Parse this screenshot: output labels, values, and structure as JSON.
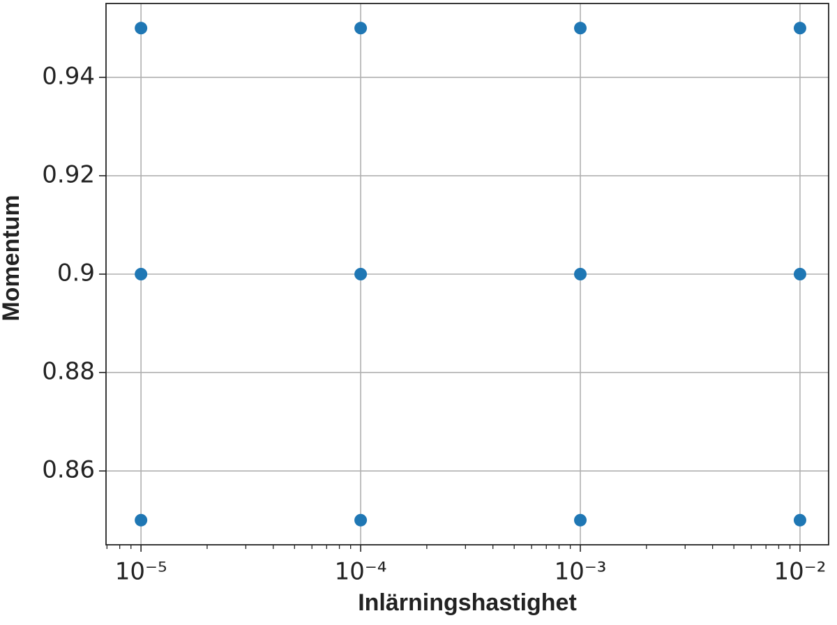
{
  "chart_data": {
    "type": "scatter",
    "x_label": "Inlärningshastighet",
    "y_label": "Momentum",
    "x": [
      1e-05,
      1e-05,
      1e-05,
      0.0001,
      0.0001,
      0.0001,
      0.001,
      0.001,
      0.001,
      0.01,
      0.01,
      0.01
    ],
    "values": [
      0.85,
      0.9,
      0.95,
      0.85,
      0.9,
      0.95,
      0.85,
      0.9,
      0.95,
      0.85,
      0.9,
      0.95
    ],
    "color": "#1f77b4",
    "x_scale": "log",
    "x_minor_ticks": true,
    "xlim": [
      6.93e-06,
      0.0135
    ],
    "xticks": [
      {
        "value": 1e-05,
        "label": "10⁻⁵"
      },
      {
        "value": 0.0001,
        "label": "10⁻⁴"
      },
      {
        "value": 0.001,
        "label": "10⁻³"
      },
      {
        "value": 0.01,
        "label": "10⁻²"
      }
    ],
    "ylim": [
      0.845,
      0.955
    ],
    "yticks": [
      0.86,
      0.88,
      0.9,
      0.92,
      0.94
    ],
    "grid": true
  }
}
